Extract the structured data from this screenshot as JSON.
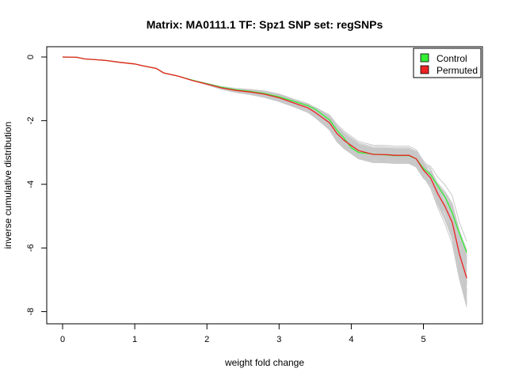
{
  "chart_data": {
    "type": "line",
    "title": "Matrix: MA0111.1 TF: Spz1 SNP set: regSNPs",
    "xlabel": "weight fold change",
    "ylabel": "inverse cumulative distribution",
    "xlim": [
      0,
      5.6
    ],
    "ylim": [
      -8,
      0
    ],
    "xticks": [
      0,
      1,
      2,
      3,
      4,
      5
    ],
    "yticks": [
      0,
      -2,
      -4,
      -6,
      -8
    ],
    "legend": {
      "position": "top-right",
      "entries": [
        "Control",
        "Permuted"
      ]
    },
    "colors": {
      "Control": "#33ee33",
      "Permuted": "#ee2222",
      "background_permutations": "#c8c8c8"
    },
    "x": [
      0.0,
      0.2,
      0.3,
      0.5,
      0.6,
      0.8,
      1.0,
      1.1,
      1.3,
      1.4,
      1.6,
      1.8,
      2.0,
      2.2,
      2.4,
      2.6,
      2.8,
      3.0,
      3.2,
      3.4,
      3.5,
      3.7,
      3.8,
      3.9,
      4.0,
      4.1,
      4.3,
      4.5,
      4.6,
      4.8,
      4.9,
      5.0,
      5.1,
      5.2,
      5.3,
      5.4,
      5.5,
      5.6
    ],
    "series": [
      {
        "name": "Control",
        "values": [
          0.0,
          -0.01,
          -0.06,
          -0.09,
          -0.11,
          -0.17,
          -0.22,
          -0.27,
          -0.36,
          -0.5,
          -0.6,
          -0.73,
          -0.84,
          -0.95,
          -1.03,
          -1.08,
          -1.15,
          -1.25,
          -1.39,
          -1.53,
          -1.64,
          -1.98,
          -2.3,
          -2.55,
          -2.85,
          -3.0,
          -3.05,
          -3.08,
          -3.1,
          -3.1,
          -3.2,
          -3.5,
          -3.7,
          -4.05,
          -4.4,
          -4.9,
          -5.55,
          -6.15
        ]
      },
      {
        "name": "Permuted",
        "values": [
          0.0,
          -0.01,
          -0.06,
          -0.09,
          -0.11,
          -0.17,
          -0.22,
          -0.27,
          -0.36,
          -0.5,
          -0.6,
          -0.74,
          -0.85,
          -0.97,
          -1.05,
          -1.1,
          -1.17,
          -1.28,
          -1.44,
          -1.6,
          -1.74,
          -2.07,
          -2.4,
          -2.62,
          -2.78,
          -2.94,
          -3.06,
          -3.07,
          -3.09,
          -3.09,
          -3.2,
          -3.55,
          -3.8,
          -4.3,
          -4.7,
          -5.2,
          -6.2,
          -6.95
        ]
      }
    ],
    "permutation_lines": 60
  }
}
